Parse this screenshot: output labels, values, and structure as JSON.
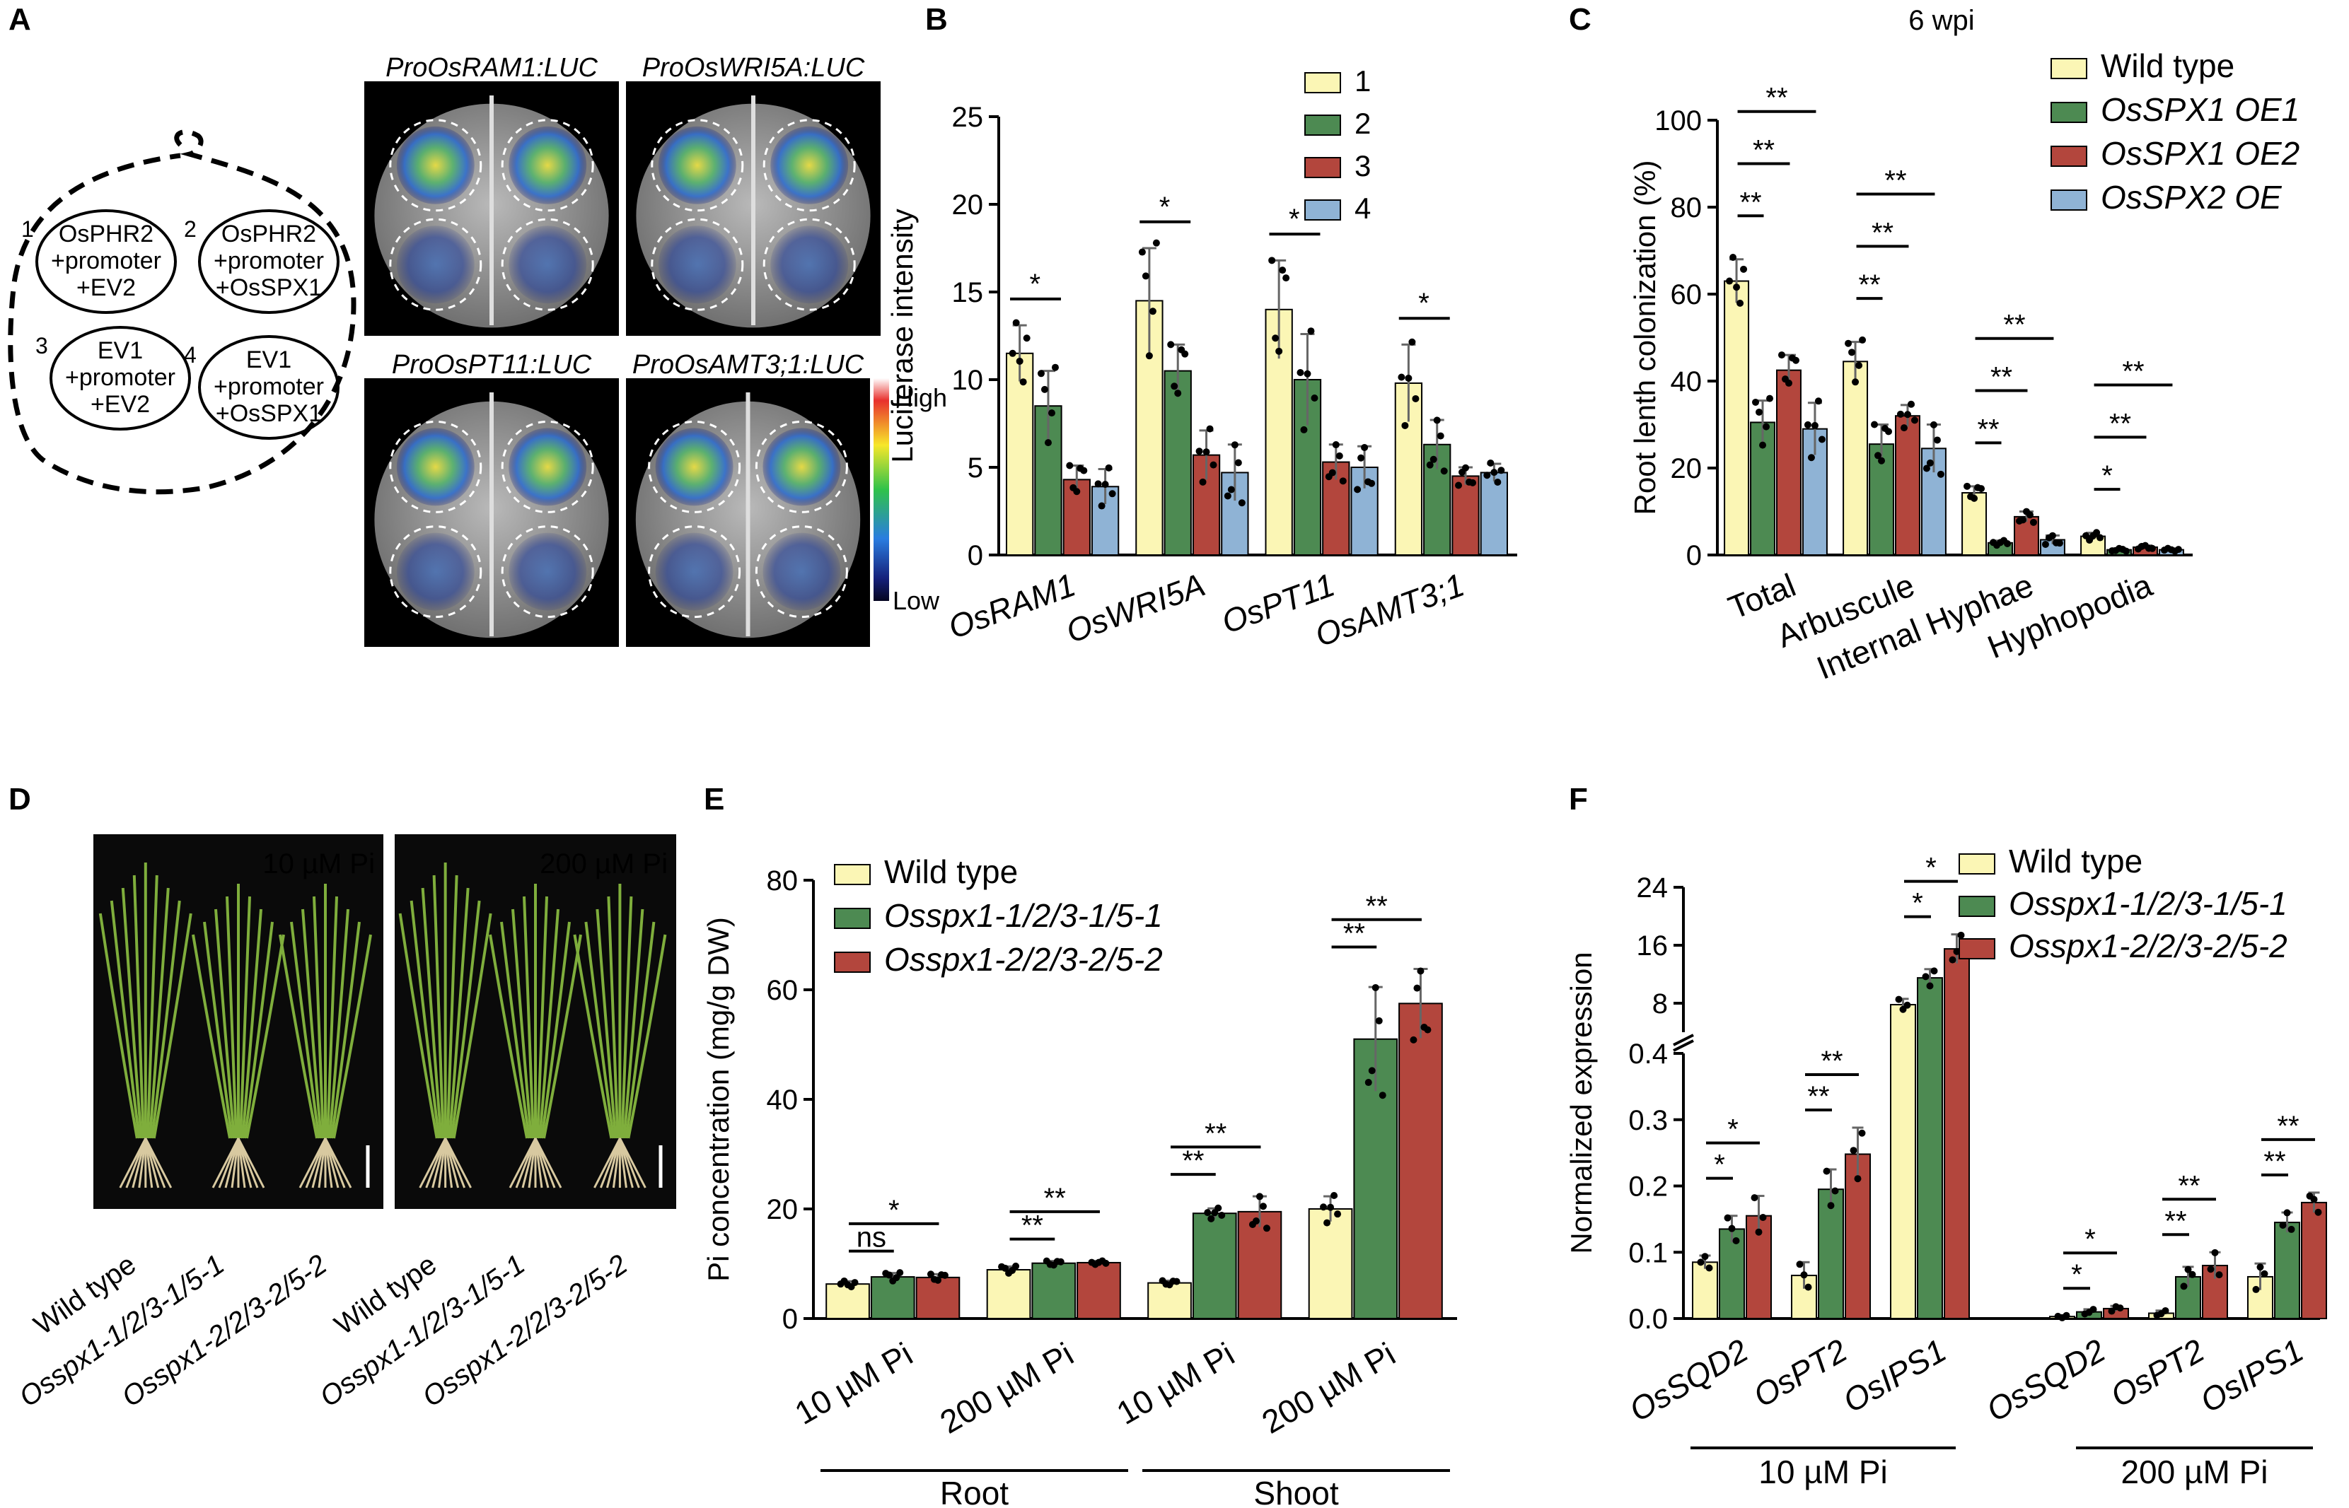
{
  "panels": {
    "A": {
      "letter": "A",
      "diagram": {
        "spots": [
          {
            "num": "1",
            "l1": "OsPHR2",
            "l2": "+promoter",
            "l3": "+EV2"
          },
          {
            "num": "2",
            "l1": "OsPHR2",
            "l2": "+promoter",
            "l3": "+OsSPX1"
          },
          {
            "num": "3",
            "l1": "EV1",
            "l2": "+promoter",
            "l3": "+EV2"
          },
          {
            "num": "4",
            "l1": "EV1",
            "l2": "+promoter",
            "l3": "+OsSPX1"
          }
        ],
        "green": "#1f8a2a",
        "orange": "#e0851a"
      },
      "images": [
        {
          "label": "ProOsRAM1:LUC"
        },
        {
          "label": "ProOsWRI5A:LUC"
        },
        {
          "label": "ProOsPT11:LUC"
        },
        {
          "label": "ProOsAMT3;1:LUC"
        }
      ],
      "colorbar": {
        "high": "High",
        "low": "Low"
      }
    },
    "D": {
      "letter": "D",
      "photos": [
        {
          "condition": "10 µM Pi"
        },
        {
          "condition": "200 µM Pi"
        }
      ],
      "genotypes": [
        "Wild type",
        "Osspx1-1/2/3-1/5-1",
        "Osspx1-2/2/3-2/5-2",
        "Wild type",
        "Osspx1-1/2/3-1/5-1",
        "Osspx1-2/2/3-2/5-2"
      ]
    }
  },
  "colors": {
    "yellow": "#fbf6b5",
    "green": "#4d8a52",
    "red": "#b3463d",
    "blue": "#8fb3d5"
  },
  "chart_data": [
    {
      "id": "B",
      "letter": "B",
      "type": "bar",
      "categories": [
        "OsRAM1",
        "OsWRI5A",
        "OsPT11",
        "OsAMT3;1"
      ],
      "series": [
        {
          "name": "1",
          "color": "#fbf6b5",
          "values": [
            11.5,
            14.5,
            14.0,
            9.8
          ],
          "err": [
            1.6,
            3.0,
            2.8,
            2.2
          ]
        },
        {
          "name": "2",
          "color": "#4d8a52",
          "values": [
            8.5,
            10.5,
            10.0,
            6.3
          ],
          "err": [
            2.0,
            1.5,
            2.6,
            1.4
          ]
        },
        {
          "name": "3",
          "color": "#b3463d",
          "values": [
            4.3,
            5.7,
            5.3,
            4.5
          ],
          "err": [
            0.8,
            1.4,
            1.0,
            0.5
          ]
        },
        {
          "name": "4",
          "color": "#8fb3d5",
          "values": [
            3.9,
            4.7,
            5.0,
            4.7
          ],
          "err": [
            1.0,
            1.6,
            1.2,
            0.5
          ]
        }
      ],
      "ylabel": "Luciferase intensity",
      "ylim": [
        0,
        25
      ],
      "yticks": [
        "0",
        "5",
        "10",
        "15",
        "20",
        "25"
      ],
      "sig": [
        "*",
        "*",
        "*",
        "*"
      ]
    },
    {
      "id": "C",
      "letter": "C",
      "type": "bar",
      "title": "6 wpi",
      "categories": [
        "Total",
        "Arbuscule",
        "Internal Hyphae",
        "Hyphopodia"
      ],
      "series": [
        {
          "name": "Wild type",
          "color": "#fbf6b5",
          "values": [
            63,
            44.5,
            14.3,
            4.3
          ],
          "err": [
            5,
            4.5,
            1.5,
            0.8
          ]
        },
        {
          "name": "OsSPX1 OE1",
          "color": "#4d8a52",
          "values": [
            30.5,
            25.5,
            2.8,
            1.2
          ],
          "err": [
            5,
            4.5,
            0.5,
            0.3
          ]
        },
        {
          "name": "OsSPX1 OE2",
          "color": "#b3463d",
          "values": [
            42.5,
            32,
            8.8,
            1.8
          ],
          "err": [
            3.5,
            2.5,
            1.2,
            0.4
          ]
        },
        {
          "name": "OsSPX2 OE",
          "color": "#8fb3d5",
          "values": [
            29,
            24.5,
            3.5,
            1.2
          ],
          "err": [
            6,
            5.5,
            1,
            0.3
          ]
        }
      ],
      "ylabel": "Root lenth colonization (%)",
      "ylim": [
        0,
        100
      ],
      "yticks": [
        "0",
        "20",
        "40",
        "60",
        "80",
        "100"
      ],
      "sig": [
        [
          "**",
          "**",
          "**"
        ],
        [
          "**",
          "**",
          "**"
        ],
        [
          "**",
          "**",
          "**"
        ],
        [
          "*",
          "**",
          "**"
        ]
      ]
    },
    {
      "id": "E",
      "letter": "E",
      "type": "bar",
      "categories": [
        "10 µM Pi",
        "200 µM Pi",
        "10 µM Pi",
        "200 µM Pi"
      ],
      "groups": [
        "Root",
        "Shoot"
      ],
      "series": [
        {
          "name": "Wild type",
          "color": "#fbf6b5",
          "values": [
            6.3,
            8.9,
            6.5,
            20
          ],
          "err": [
            0.5,
            0.6,
            0.4,
            2.3
          ]
        },
        {
          "name": "Osspx1-1/2/3-1/5-1",
          "color": "#4d8a52",
          "values": [
            7.6,
            10.1,
            19.2,
            51
          ],
          "err": [
            0.7,
            0.4,
            0.9,
            9.5
          ]
        },
        {
          "name": "Osspx1-2/2/3-2/5-2",
          "color": "#b3463d",
          "values": [
            7.5,
            10.2,
            19.5,
            57.5
          ],
          "err": [
            0.6,
            0.3,
            2.8,
            6.3
          ]
        }
      ],
      "ylabel": "Pi concentration (mg/g DW)",
      "ylim": [
        0,
        80
      ],
      "yticks": [
        "0",
        "20",
        "40",
        "60",
        "80"
      ],
      "sig": [
        [
          "ns",
          "*"
        ],
        [
          "**",
          "**"
        ],
        [
          "**",
          "**"
        ],
        [
          "**",
          "**"
        ]
      ]
    },
    {
      "id": "F",
      "letter": "F",
      "type": "bar",
      "categories": [
        "OsSQD2",
        "OsPT2",
        "OsIPS1",
        "OsSQD2",
        "OsPT2",
        "OsIPS1"
      ],
      "groups": [
        "10 µM Pi",
        "200 µM Pi"
      ],
      "series": [
        {
          "name": "Wild type",
          "color": "#fbf6b5",
          "values": [
            0.085,
            0.065,
            7.8,
            0.003,
            0.008,
            0.063
          ],
          "err": [
            0.01,
            0.02,
            0.8,
            0.002,
            0.004,
            0.02
          ]
        },
        {
          "name": "Osspx1-1/2/3-1/5-1",
          "color": "#4d8a52",
          "values": [
            0.135,
            0.195,
            11.5,
            0.01,
            0.063,
            0.145
          ],
          "err": [
            0.02,
            0.03,
            1.2,
            0.004,
            0.015,
            0.015
          ]
        },
        {
          "name": "Osspx1-2/2/3-2/5-2",
          "color": "#b3463d",
          "values": [
            0.155,
            0.248,
            15.5,
            0.015,
            0.08,
            0.175
          ],
          "err": [
            0.03,
            0.04,
            2.0,
            0.004,
            0.02,
            0.015
          ]
        }
      ],
      "ylabel": "Normalized expression",
      "ylim_lower": [
        0,
        0.4
      ],
      "ylim_upper": [
        4,
        24
      ],
      "yticks_lower": [
        "0.0",
        "0.1",
        "0.2",
        "0.3",
        "0.4"
      ],
      "yticks_upper": [
        "8",
        "16",
        "24"
      ],
      "sig": [
        [
          "*",
          "*"
        ],
        [
          "**",
          "**"
        ],
        [
          "*",
          "*"
        ],
        [
          "*",
          "*"
        ],
        [
          "**",
          "**"
        ],
        [
          "**",
          "**"
        ]
      ]
    }
  ]
}
